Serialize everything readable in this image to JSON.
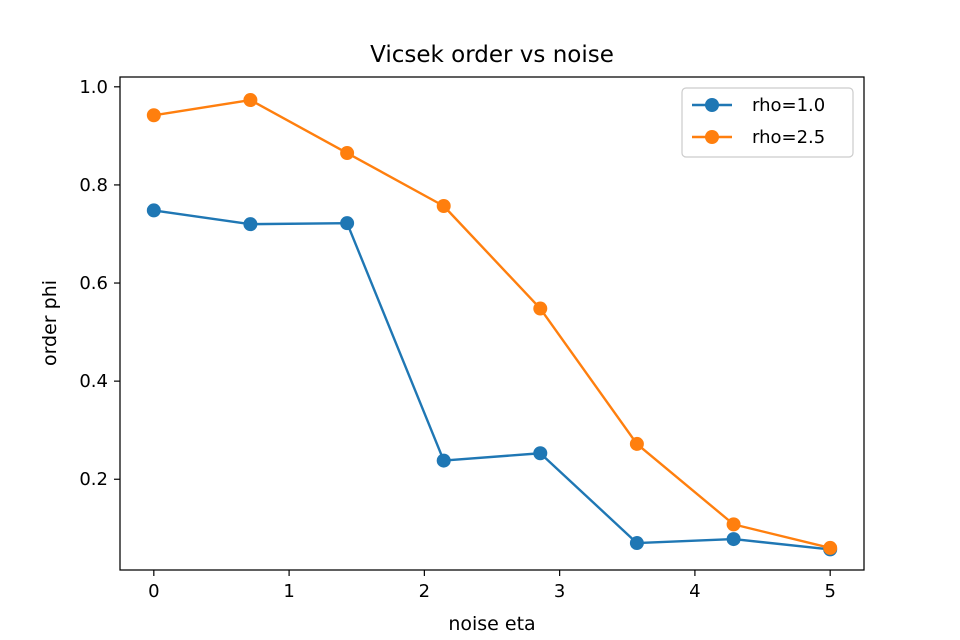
{
  "chart_data": {
    "type": "line",
    "title": "Vicsek order vs noise",
    "xlabel": "noise eta",
    "ylabel": "order phi",
    "xlim": [
      -0.25,
      5.25
    ],
    "ylim": [
      0.015,
      1.02
    ],
    "xticks": [
      0,
      1,
      2,
      3,
      4,
      5
    ],
    "yticks": [
      0.2,
      0.4,
      0.6,
      0.8,
      1.0
    ],
    "xtick_labels": [
      "0",
      "1",
      "2",
      "3",
      "4",
      "5"
    ],
    "ytick_labels": [
      "0.2",
      "0.4",
      "0.6",
      "0.8",
      "1.0"
    ],
    "x": [
      0,
      0.714,
      1.429,
      2.143,
      2.857,
      3.571,
      4.286,
      5.0
    ],
    "series": [
      {
        "name": "rho=1.0",
        "color": "#1f77b4",
        "values": [
          0.748,
          0.72,
          0.722,
          0.238,
          0.253,
          0.07,
          0.078,
          0.057
        ]
      },
      {
        "name": "rho=2.5",
        "color": "#ff7f0e",
        "values": [
          0.942,
          0.973,
          0.865,
          0.757,
          0.548,
          0.272,
          0.108,
          0.06
        ]
      }
    ],
    "grid": false,
    "legend_position": "top-right"
  }
}
